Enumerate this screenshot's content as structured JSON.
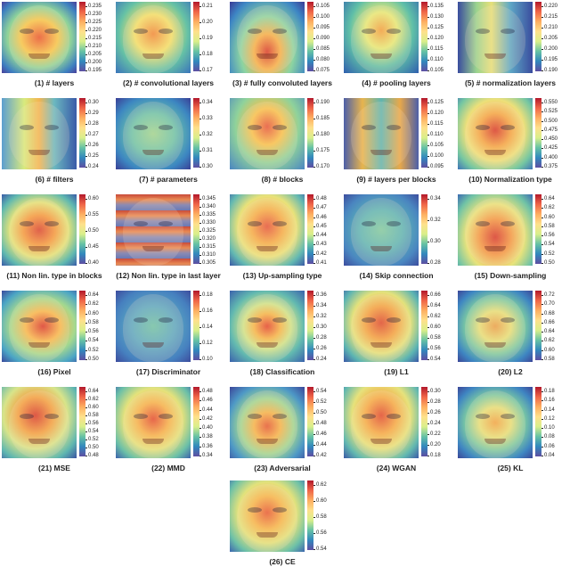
{
  "chart_data": [
    {
      "type": "heatmap",
      "caption": "(1) # layers",
      "colorbar_ticks": [
        "0.235",
        "0.230",
        "0.225",
        "0.220",
        "0.215",
        "0.210",
        "0.205",
        "0.200",
        "0.195"
      ]
    },
    {
      "type": "heatmap",
      "caption": "(2) # convolutional layers",
      "colorbar_ticks": [
        "0.21",
        "0.20",
        "0.19",
        "0.18",
        "0.17"
      ]
    },
    {
      "type": "heatmap",
      "caption": "(3) # fully convoluted layers",
      "colorbar_ticks": [
        "0.105",
        "0.100",
        "0.095",
        "0.090",
        "0.085",
        "0.080",
        "0.075"
      ]
    },
    {
      "type": "heatmap",
      "caption": "(4) # pooling layers",
      "colorbar_ticks": [
        "0.135",
        "0.130",
        "0.125",
        "0.120",
        "0.115",
        "0.110",
        "0.105"
      ]
    },
    {
      "type": "heatmap",
      "caption": "(5) # normalization layers",
      "colorbar_ticks": [
        "0.220",
        "0.215",
        "0.210",
        "0.205",
        "0.200",
        "0.195",
        "0.190"
      ]
    },
    {
      "type": "heatmap",
      "caption": "(6) # filters",
      "colorbar_ticks": [
        "0.30",
        "0.29",
        "0.28",
        "0.27",
        "0.26",
        "0.25",
        "0.24"
      ]
    },
    {
      "type": "heatmap",
      "caption": "(7) # parameters",
      "colorbar_ticks": [
        "0.34",
        "0.33",
        "0.32",
        "0.31",
        "0.30"
      ]
    },
    {
      "type": "heatmap",
      "caption": "(8) # blocks",
      "colorbar_ticks": [
        "0.190",
        "0.185",
        "0.180",
        "0.175",
        "0.170"
      ]
    },
    {
      "type": "heatmap",
      "caption": "(9) # layers per blocks",
      "colorbar_ticks": [
        "0.125",
        "0.120",
        "0.115",
        "0.110",
        "0.105",
        "0.100",
        "0.095"
      ]
    },
    {
      "type": "heatmap",
      "caption": "(10) Normalization type",
      "colorbar_ticks": [
        "0.550",
        "0.525",
        "0.500",
        "0.475",
        "0.450",
        "0.425",
        "0.400",
        "0.375"
      ]
    },
    {
      "type": "heatmap",
      "caption": "(11) Non lin. type in blocks",
      "colorbar_ticks": [
        "0.60",
        "0.55",
        "0.50",
        "0.45",
        "0.40"
      ]
    },
    {
      "type": "heatmap",
      "caption": "(12) Non lin. type in last layer",
      "colorbar_ticks": [
        "0.345",
        "0.340",
        "0.335",
        "0.330",
        "0.325",
        "0.320",
        "0.315",
        "0.310",
        "0.305"
      ]
    },
    {
      "type": "heatmap",
      "caption": "(13) Up-sampling type",
      "colorbar_ticks": [
        "0.48",
        "0.47",
        "0.46",
        "0.45",
        "0.44",
        "0.43",
        "0.42",
        "0.41"
      ]
    },
    {
      "type": "heatmap",
      "caption": "(14) Skip connection",
      "colorbar_ticks": [
        "0.34",
        "0.32",
        "0.30",
        "0.28"
      ]
    },
    {
      "type": "heatmap",
      "caption": "(15) Down-sampling",
      "colorbar_ticks": [
        "0.64",
        "0.62",
        "0.60",
        "0.58",
        "0.56",
        "0.54",
        "0.52",
        "0.50"
      ]
    },
    {
      "type": "heatmap",
      "caption": "(16) Pixel",
      "colorbar_ticks": [
        "0.64",
        "0.62",
        "0.60",
        "0.58",
        "0.56",
        "0.54",
        "0.52",
        "0.50"
      ]
    },
    {
      "type": "heatmap",
      "caption": "(17) Discriminator",
      "colorbar_ticks": [
        "0.18",
        "0.16",
        "0.14",
        "0.12",
        "0.10"
      ]
    },
    {
      "type": "heatmap",
      "caption": "(18) Classification",
      "colorbar_ticks": [
        "0.36",
        "0.34",
        "0.32",
        "0.30",
        "0.28",
        "0.26",
        "0.24"
      ]
    },
    {
      "type": "heatmap",
      "caption": "(19) L1",
      "colorbar_ticks": [
        "0.66",
        "0.64",
        "0.62",
        "0.60",
        "0.58",
        "0.56",
        "0.54"
      ]
    },
    {
      "type": "heatmap",
      "caption": "(20) L2",
      "colorbar_ticks": [
        "0.72",
        "0.70",
        "0.68",
        "0.66",
        "0.64",
        "0.62",
        "0.60",
        "0.58"
      ]
    },
    {
      "type": "heatmap",
      "caption": "(21) MSE",
      "colorbar_ticks": [
        "0.64",
        "0.62",
        "0.60",
        "0.58",
        "0.56",
        "0.54",
        "0.52",
        "0.50",
        "0.48"
      ]
    },
    {
      "type": "heatmap",
      "caption": "(22) MMD",
      "colorbar_ticks": [
        "0.48",
        "0.46",
        "0.44",
        "0.42",
        "0.40",
        "0.38",
        "0.36",
        "0.34"
      ]
    },
    {
      "type": "heatmap",
      "caption": "(23) Adversarial",
      "colorbar_ticks": [
        "0.54",
        "0.52",
        "0.50",
        "0.48",
        "0.46",
        "0.44",
        "0.42"
      ]
    },
    {
      "type": "heatmap",
      "caption": "(24) WGAN",
      "colorbar_ticks": [
        "0.30",
        "0.28",
        "0.26",
        "0.24",
        "0.22",
        "0.20",
        "0.18"
      ]
    },
    {
      "type": "heatmap",
      "caption": "(25) KL",
      "colorbar_ticks": [
        "0.18",
        "0.16",
        "0.14",
        "0.12",
        "0.10",
        "0.08",
        "0.06",
        "0.04"
      ]
    },
    {
      "type": "heatmap",
      "caption": "(26) CE",
      "colorbar_ticks": [
        "0.62",
        "0.60",
        "0.58",
        "0.56",
        "0.54"
      ]
    }
  ],
  "colormap": [
    "#b2182b",
    "#ef6548",
    "#fdae61",
    "#fee08b",
    "#d9ef8b",
    "#66c2a5",
    "#3288bd",
    "#5e4fa2"
  ],
  "heat_styles": [
    "radial-gradient(ellipse at 50% 50%, #e8572e 0%, #f6c64b 35%, #8fd39a 60%, #3d7fc0 85%, #4a3f9a 100%)",
    "radial-gradient(ellipse at 50% 45%, #ef8a3a 0%, #f2e06a 35%, #66c2a5 65%, #3a74bb 100%)",
    "radial-gradient(ellipse at 50% 70%, #d73b2a 0%, #f5b04a 25%, #8cd4a2 50%, #3d86c4 80%, #3a3a96 100%)",
    "radial-gradient(ellipse at 50% 40%, #f0a040 0%, #e6ea78 30%, #5fbfa8 60%, #2f5fae 100%)",
    "linear-gradient(90deg, #3a4c9e 0%, #9ad38f 25%, #e6e07a 45%, #5ea8c6 70%, #3a4c9e 100%)",
    "linear-gradient(90deg, #5c9ed0 0%, #d8ea7e 30%, #f2b552 50%, #6bb8c0 70%, #3a5aa8 100%)",
    "radial-gradient(ellipse at 50% 50%, #9fd693 0%, #6cc4aa 40%, #3c86c1 75%, #3a3f96 100%)",
    "radial-gradient(ellipse at 50% 40%, #e5563a 0%, #f7c24e 30%, #8fd29b 60%, #4a86c2 100%)",
    "linear-gradient(90deg, #4c5fa8 0%, #e8b44e 25%, #5fb5b0 50%, #e8a84a 75%, #4c5fa8 100%)",
    "radial-gradient(ellipse at 50% 45%, #d63a2a 0%, #f3a545 30%, #ede07a 55%, #74c6a2 80%, #3f74b8 100%)",
    "radial-gradient(ellipse at 50% 50%, #d94630 0%, #f39a40 30%, #e2e37a 55%, #5fb8b0 80%, #3a5ca8 100%)",
    "repeating-linear-gradient(180deg, #c84a3a 0px, #e98a52 6px, #8a8ab4 12px, #6a78b4 18px)",
    "radial-gradient(ellipse at 50% 45%, #e4543a 0%, #f4ac48 30%, #e9e27a 55%, #62b8b2 80%, #3b5aa6 100%)",
    "radial-gradient(ellipse at 50% 50%, #7fcba4 0%, #5cb5b6 40%, #4a86c0 75%, #3c4d9e 100%)",
    "radial-gradient(ellipse at 50% 60%, #d6392c 0%, #f29845 30%, #e8e37c 55%, #70c3a6 80%, #3c6bb2 100%)",
    "radial-gradient(ellipse at 55% 50%, #d93a2c 0%, #f7b84e 30%, #a6d98e 55%, #4ba5c5 80%, #3a4a9c 100%)",
    "radial-gradient(ellipse at 50% 50%, #6ec3aa 0%, #5aa8c2 40%, #4680bf 75%, #3d4c9d 100%)",
    "radial-gradient(ellipse at 50% 50%, #e2452e 0%, #f4b64a 25%, #cfe48a 45%, #62b9b0 70%, #3b62ac 100%)",
    "radial-gradient(ellipse at 50% 45%, #dc4a2e 0%, #f2a242 30%, #e4e27c 55%, #5cb4b2 80%, #3a58a6 100%)",
    "radial-gradient(ellipse at 50% 50%, #e8a04a 0%, #e6e07a 30%, #7ccaa2 55%, #3e86c2 80%, #3c4698 100%)",
    "radial-gradient(ellipse at 45% 40%, #d63a2a 0%, #f2a042 30%, #d8e48a 55%, #5eb6b0 80%, #3b54a2 100%)",
    "radial-gradient(ellipse at 50% 45%, #e24c30 0%, #f5b24c 30%, #e4e27c 55%, #6abfa8 80%, #3d62ac 100%)",
    "radial-gradient(ellipse at 50% 55%, #e45a34 0%, #f4b44c 25%, #9fd693 50%, #4d98c6 75%, #3b4699 100%)",
    "radial-gradient(ellipse at 50% 40%, #df4a2e 0%, #f4aa46 30%, #e6e27c 55%, #62b8b0 80%, #3b5aa6 100%)",
    "radial-gradient(ellipse at 50% 50%, #f0a646 0%, #e6e07a 30%, #7ccaa2 55%, #3f86c2 80%, #3b4698 100%)",
    "radial-gradient(ellipse at 50% 45%, #e65a34 0%, #f5b64c 30%, #e2e27c 55%, #6cc0a8 80%, #3d66ae 100%)"
  ]
}
